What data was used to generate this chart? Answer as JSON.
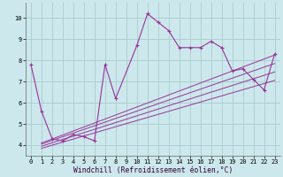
{
  "bg_color": "#cce8ec",
  "grid_color": "#aacccc",
  "line_color": "#993399",
  "marker_color": "#993399",
  "xlabel": "Windchill (Refroidissement éolien,°C)",
  "xlim": [
    -0.5,
    23.5
  ],
  "ylim": [
    3.5,
    10.7
  ],
  "yticks": [
    4,
    5,
    6,
    7,
    8,
    9,
    10
  ],
  "xticks": [
    0,
    1,
    2,
    3,
    4,
    5,
    6,
    7,
    8,
    9,
    10,
    11,
    12,
    13,
    14,
    15,
    16,
    17,
    18,
    19,
    20,
    21,
    22,
    23
  ],
  "main_line_x": [
    0,
    1,
    2,
    3,
    4,
    5,
    6,
    7,
    8,
    10,
    11,
    12,
    13,
    14,
    15,
    16,
    17,
    18,
    19,
    20,
    21,
    22,
    23
  ],
  "main_line_y": [
    7.8,
    5.6,
    4.3,
    4.2,
    4.5,
    4.4,
    4.2,
    7.8,
    6.2,
    8.7,
    10.2,
    9.8,
    9.4,
    8.6,
    8.6,
    8.6,
    8.9,
    8.6,
    7.5,
    7.6,
    7.1,
    6.6,
    8.3
  ],
  "reg_lines": [
    {
      "x": [
        1,
        23
      ],
      "y": [
        4.1,
        8.25
      ]
    },
    {
      "x": [
        1,
        23
      ],
      "y": [
        4.05,
        7.85
      ]
    },
    {
      "x": [
        1,
        23
      ],
      "y": [
        3.95,
        7.45
      ]
    },
    {
      "x": [
        1,
        23
      ],
      "y": [
        3.85,
        7.05
      ]
    }
  ],
  "axis_fontsize": 5.5,
  "tick_fontsize": 5.0,
  "xlabel_fontsize": 5.8
}
